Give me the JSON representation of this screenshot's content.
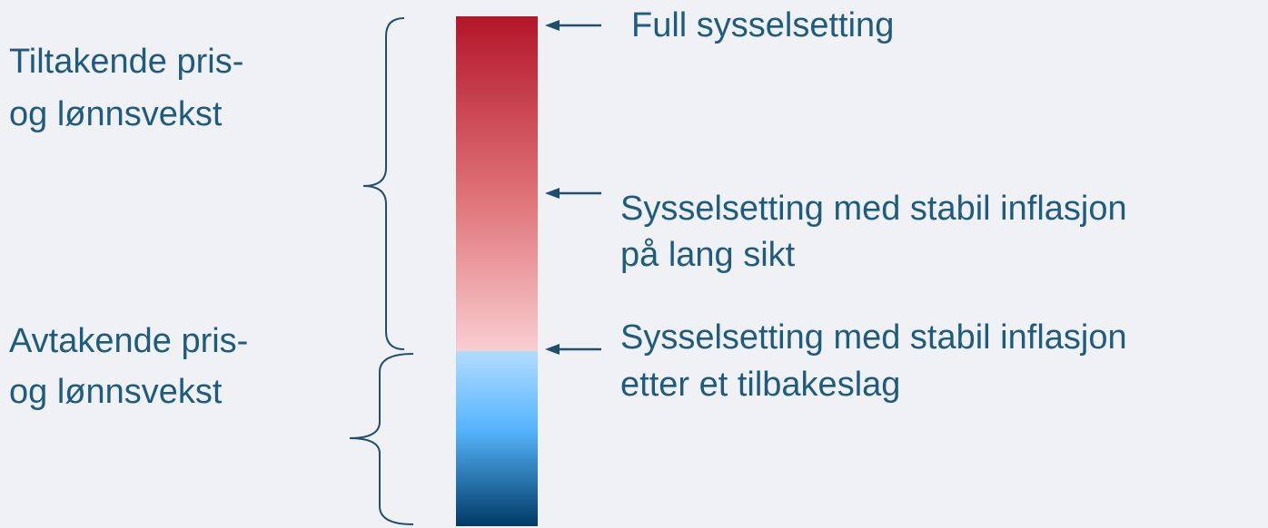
{
  "left_labels": [
    {
      "lines": [
        "Tiltakende pris-",
        "og lønnsvekst"
      ]
    },
    {
      "lines": [
        "Avtakende pris-",
        "og lønnsvekst"
      ]
    }
  ],
  "markers": [
    {
      "lines": [
        "Full sysselsetting"
      ]
    },
    {
      "lines": [
        "Sysselsetting med stabil inflasjon",
        "på lang sikt"
      ]
    },
    {
      "lines": [
        "Sysselsetting med stabil inflasjon",
        "etter et tilbakeslag"
      ]
    }
  ]
}
